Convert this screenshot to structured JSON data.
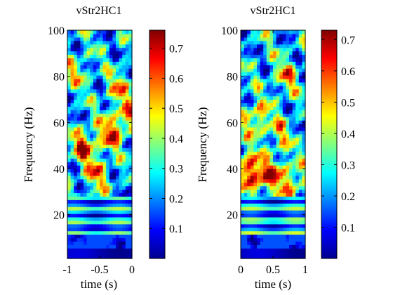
{
  "chart_data": [
    {
      "type": "heatmap",
      "title": "vStr2HC1",
      "xlabel": "time (s)",
      "ylabel": "Frequency (Hz)",
      "xlim": [
        -1,
        0
      ],
      "ylim": [
        1,
        100
      ],
      "x_ticks": [
        -1,
        -0.5,
        0
      ],
      "x_tick_labels": [
        "-1",
        "-0.5",
        "0"
      ],
      "y_ticks": [
        20,
        40,
        60,
        80,
        100
      ],
      "y_tick_labels": [
        "20",
        "40",
        "60",
        "80",
        "100"
      ],
      "colormap": "jet",
      "colorbar": {
        "range": [
          0.0,
          0.76
        ],
        "ticks": [
          0.1,
          0.2,
          0.3,
          0.4,
          0.5,
          0.6,
          0.7
        ],
        "tick_labels": [
          "0.1",
          "0.2",
          "0.3",
          "0.4",
          "0.5",
          "0.6",
          "0.7"
        ]
      },
      "highlights": [
        {
          "t": -0.75,
          "f": 50,
          "value": 0.65
        },
        {
          "t": -0.35,
          "f": 55,
          "value": 0.6
        },
        {
          "t": -0.1,
          "f": 62,
          "value": 0.55
        },
        {
          "t": -0.55,
          "f": 38,
          "value": 0.55
        },
        {
          "t": -0.2,
          "f": 75,
          "value": 0.5
        },
        {
          "t": -0.85,
          "f": 82,
          "value": 0.45
        }
      ]
    },
    {
      "type": "heatmap",
      "title": "vStr2HC1",
      "xlabel": "time (s)",
      "ylabel": "Frequency (Hz)",
      "xlim": [
        0,
        1
      ],
      "ylim": [
        1,
        100
      ],
      "x_ticks": [
        0,
        0.5,
        1
      ],
      "x_tick_labels": [
        "0",
        "0.5",
        "1"
      ],
      "y_ticks": [
        20,
        40,
        60,
        80,
        100
      ],
      "y_tick_labels": [
        "20",
        "40",
        "60",
        "80",
        "100"
      ],
      "colormap": "jet",
      "colorbar": {
        "range": [
          0.0,
          0.73
        ],
        "ticks": [
          0.1,
          0.2,
          0.3,
          0.4,
          0.5,
          0.6,
          0.7
        ],
        "tick_labels": [
          "0.1",
          "0.2",
          "0.3",
          "0.4",
          "0.5",
          "0.6",
          "0.7"
        ]
      },
      "highlights": [
        {
          "t": 0.1,
          "f": 40,
          "value": 0.65
        },
        {
          "t": 0.3,
          "f": 36,
          "value": 0.55
        },
        {
          "t": 0.55,
          "f": 38,
          "value": 0.5
        },
        {
          "t": 0.8,
          "f": 34,
          "value": 0.5
        },
        {
          "t": 0.25,
          "f": 62,
          "value": 0.55
        },
        {
          "t": 0.6,
          "f": 55,
          "value": 0.45
        },
        {
          "t": 0.7,
          "f": 80,
          "value": 0.5
        }
      ]
    }
  ]
}
